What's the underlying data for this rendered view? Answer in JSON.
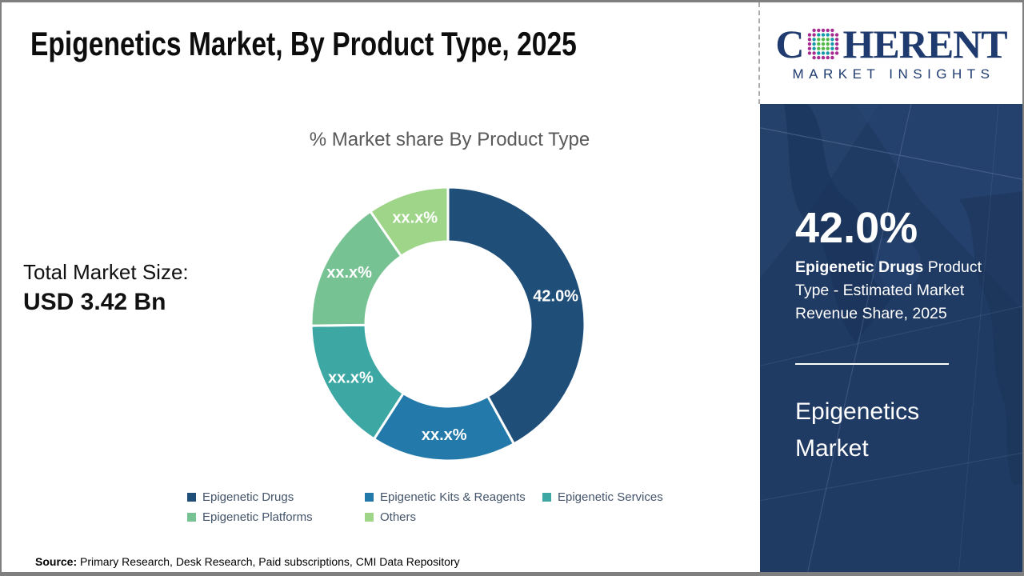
{
  "header": {
    "title": "Epigenetics Market, By Product Type, 2025"
  },
  "logo": {
    "c": "C",
    "rest": "HERENT",
    "subtitle": "MARKET INSIGHTS",
    "text_color": "#1E3A6E",
    "globe_colors": {
      "inner": "#54B948",
      "mid": "#1599A8",
      "outer": "#A62C92"
    }
  },
  "chart_data": {
    "type": "pie",
    "subtype": "donut",
    "title": "% Market share By Product Type",
    "hole_ratio": 0.6,
    "start_angle_deg": 0,
    "direction": "clockwise",
    "legend_position": "bottom",
    "segments": [
      {
        "label": "Epigenetic Drugs",
        "display": "42.0%",
        "value": 42.0,
        "color": "#1F4E79"
      },
      {
        "label": "Epigenetic Kits & Reagents",
        "display": "xx.x%",
        "value": 17.1,
        "color": "#2379A9"
      },
      {
        "label": "Epigenetic Services",
        "display": "xx.x%",
        "value": 15.7,
        "color": "#3DA8A3"
      },
      {
        "label": "Epigenetic Platforms",
        "display": "xx.x%",
        "value": 15.6,
        "color": "#76C293"
      },
      {
        "label": "Others",
        "display": "xx.x%",
        "value": 9.6,
        "color": "#9ED589"
      }
    ]
  },
  "total_market": {
    "label": "Total Market Size:",
    "value": "USD 3.42 Bn"
  },
  "sidebar": {
    "bg": "#1F3A63",
    "stat_value": "42.0%",
    "stat_bold": "Epigenetic Drugs",
    "stat_rest": " Product Type - Estimated Market Revenue Share, 2025",
    "market_name": "Epigenetics Market"
  },
  "source": {
    "label": "Source:",
    "text": " Primary Research, Desk Research, Paid subscriptions, CMI Data Repository"
  }
}
